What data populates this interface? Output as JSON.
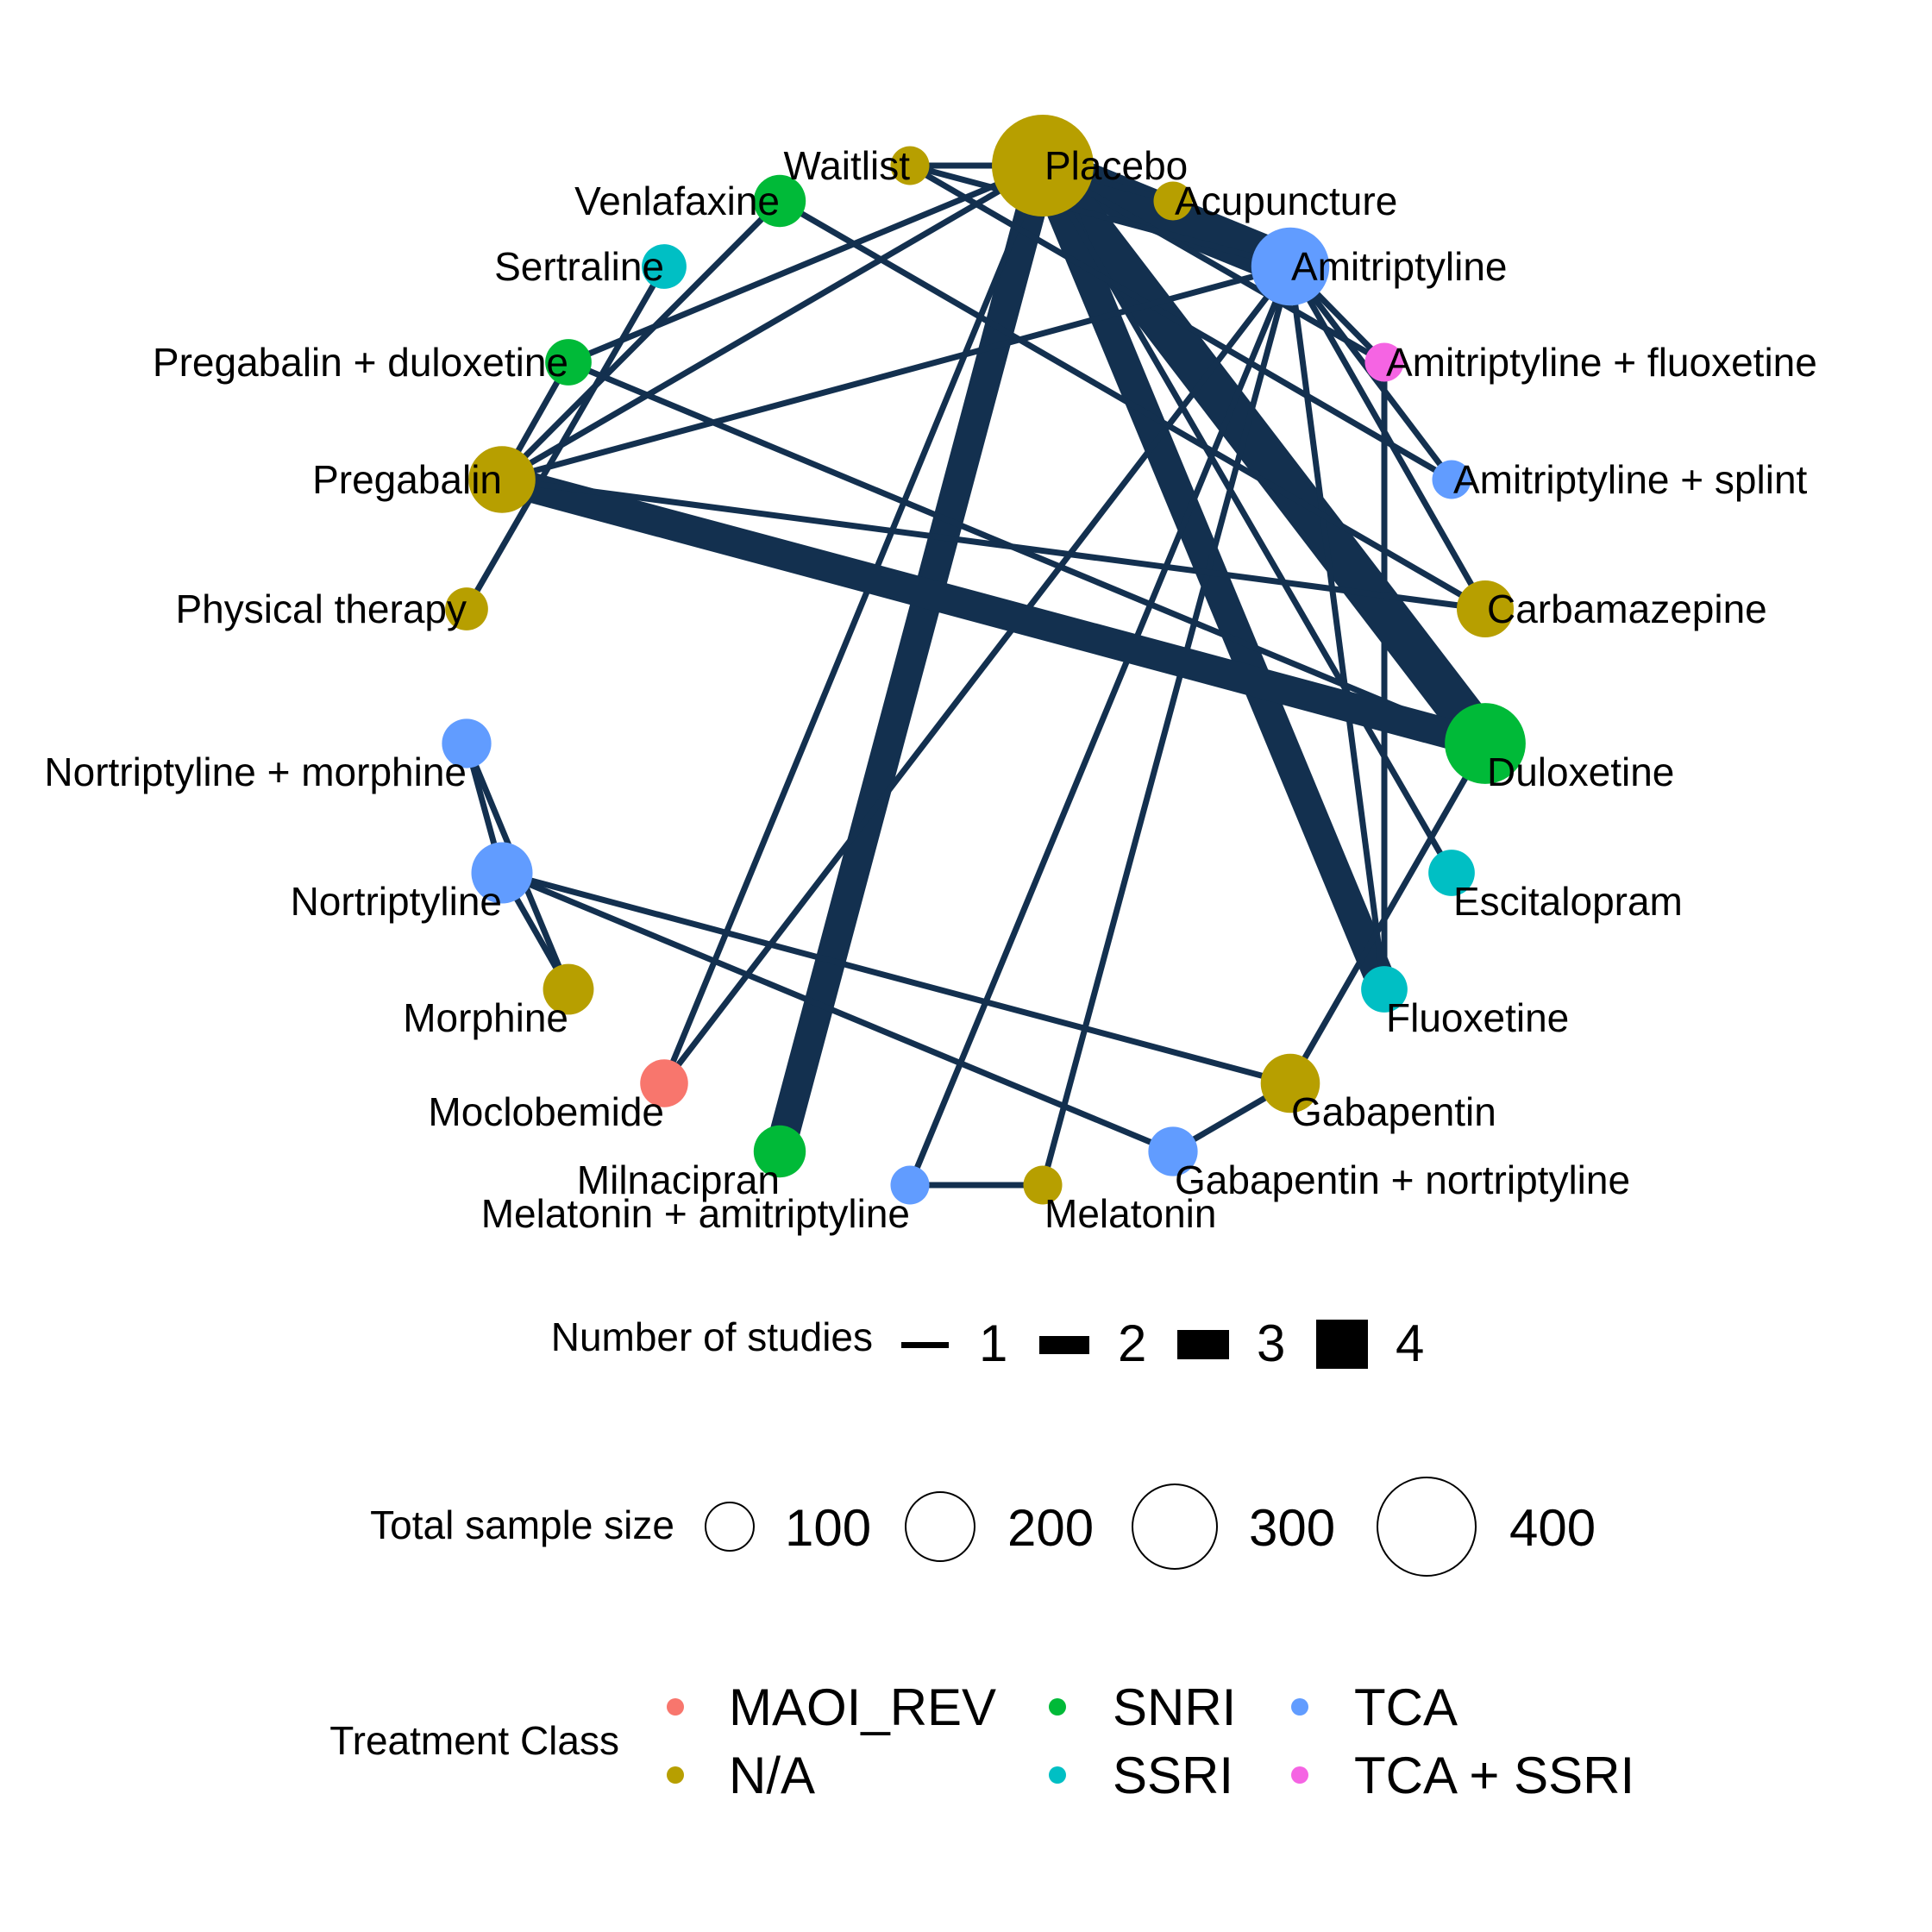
{
  "nodes": [
    {
      "id": "placebo",
      "label": "Placebo",
      "class": "N/A",
      "sample_size": 400
    },
    {
      "id": "waitlist",
      "label": "Waitlist",
      "class": "N/A",
      "sample_size": 20
    },
    {
      "id": "acupuncture",
      "label": "Acupuncture",
      "class": "N/A",
      "sample_size": 20
    },
    {
      "id": "amitriptyline",
      "label": "Amitriptyline",
      "class": "TCA",
      "sample_size": 200
    },
    {
      "id": "ami_fluox",
      "label": "Amitriptyline + fluoxetine",
      "class": "TCA + SSRI",
      "sample_size": 20
    },
    {
      "id": "ami_splint",
      "label": "Amitriptyline + splint",
      "class": "TCA",
      "sample_size": 20
    },
    {
      "id": "carbamazepine",
      "label": "Carbamazepine",
      "class": "N/A",
      "sample_size": 80
    },
    {
      "id": "duloxetine",
      "label": "Duloxetine",
      "class": "SNRI",
      "sample_size": 220
    },
    {
      "id": "escitalopram",
      "label": "Escitalopram",
      "class": "SSRI",
      "sample_size": 40
    },
    {
      "id": "fluoxetine",
      "label": "Fluoxetine",
      "class": "SSRI",
      "sample_size": 40
    },
    {
      "id": "gabapentin",
      "label": "Gabapentin",
      "class": "N/A",
      "sample_size": 90
    },
    {
      "id": "gaba_nortrip",
      "label": "Gabapentin + nortriptyline",
      "class": "TCA",
      "sample_size": 50
    },
    {
      "id": "melatonin",
      "label": "Melatonin",
      "class": "N/A",
      "sample_size": 20
    },
    {
      "id": "mel_ami",
      "label": "Melatonin + amitriptyline",
      "class": "TCA",
      "sample_size": 20
    },
    {
      "id": "milnacipran",
      "label": "Milnacipran",
      "class": "SNRI",
      "sample_size": 60
    },
    {
      "id": "moclobemide",
      "label": "Moclobemide",
      "class": "MAOI_REV",
      "sample_size": 45
    },
    {
      "id": "morphine",
      "label": "Morphine",
      "class": "N/A",
      "sample_size": 55
    },
    {
      "id": "nortriptyline",
      "label": "Nortriptyline",
      "class": "TCA",
      "sample_size": 100
    },
    {
      "id": "nortrip_morph",
      "label": "Nortriptyline + morphine",
      "class": "TCA",
      "sample_size": 50
    },
    {
      "id": "physical_therapy",
      "label": "Physical therapy",
      "class": "N/A",
      "sample_size": 30
    },
    {
      "id": "pregabalin",
      "label": "Pregabalin",
      "class": "N/A",
      "sample_size": 130
    },
    {
      "id": "preg_dulox",
      "label": "Pregabalin + duloxetine",
      "class": "SNRI",
      "sample_size": 40
    },
    {
      "id": "sertraline",
      "label": "Sertraline",
      "class": "SSRI",
      "sample_size": 35
    },
    {
      "id": "venlafaxine",
      "label": "Venlafaxine",
      "class": "SNRI",
      "sample_size": 60
    }
  ],
  "edges": [
    {
      "from": "placebo",
      "to": "amitriptyline",
      "studies": 4
    },
    {
      "from": "placebo",
      "to": "duloxetine",
      "studies": 4
    },
    {
      "from": "placebo",
      "to": "fluoxetine",
      "studies": 3
    },
    {
      "from": "placebo",
      "to": "milnacipran",
      "studies": 3
    },
    {
      "from": "placebo",
      "to": "acupuncture",
      "studies": 1
    },
    {
      "from": "placebo",
      "to": "waitlist",
      "studies": 1
    },
    {
      "from": "placebo",
      "to": "pregabalin",
      "studies": 1
    },
    {
      "from": "placebo",
      "to": "preg_dulox",
      "studies": 1
    },
    {
      "from": "placebo",
      "to": "moclobemide",
      "studies": 1
    },
    {
      "from": "placebo",
      "to": "escitalopram",
      "studies": 1
    },
    {
      "from": "placebo",
      "to": "ami_fluox",
      "studies": 1
    },
    {
      "from": "waitlist",
      "to": "amitriptyline",
      "studies": 1
    },
    {
      "from": "waitlist",
      "to": "ami_splint",
      "studies": 1
    },
    {
      "from": "amitriptyline",
      "to": "ami_fluox",
      "studies": 1
    },
    {
      "from": "amitriptyline",
      "to": "ami_splint",
      "studies": 1
    },
    {
      "from": "amitriptyline",
      "to": "carbamazepine",
      "studies": 1
    },
    {
      "from": "amitriptyline",
      "to": "fluoxetine",
      "studies": 1
    },
    {
      "from": "amitriptyline",
      "to": "pregabalin",
      "studies": 1
    },
    {
      "from": "amitriptyline",
      "to": "moclobemide",
      "studies": 1
    },
    {
      "from": "amitriptyline",
      "to": "mel_ami",
      "studies": 1
    },
    {
      "from": "amitriptyline",
      "to": "melatonin",
      "studies": 1
    },
    {
      "from": "ami_fluox",
      "to": "fluoxetine",
      "studies": 1
    },
    {
      "from": "venlafaxine",
      "to": "pregabalin",
      "studies": 1
    },
    {
      "from": "venlafaxine",
      "to": "carbamazepine",
      "studies": 1
    },
    {
      "from": "sertraline",
      "to": "physical_therapy",
      "studies": 1
    },
    {
      "from": "preg_dulox",
      "to": "pregabalin",
      "studies": 1
    },
    {
      "from": "preg_dulox",
      "to": "duloxetine",
      "studies": 1
    },
    {
      "from": "pregabalin",
      "to": "duloxetine",
      "studies": 3
    },
    {
      "from": "pregabalin",
      "to": "carbamazepine",
      "studies": 1
    },
    {
      "from": "duloxetine",
      "to": "gabapentin",
      "studies": 1
    },
    {
      "from": "nortrip_morph",
      "to": "nortriptyline",
      "studies": 1
    },
    {
      "from": "nortrip_morph",
      "to": "morphine",
      "studies": 1
    },
    {
      "from": "nortriptyline",
      "to": "morphine",
      "studies": 1
    },
    {
      "from": "nortriptyline",
      "to": "gabapentin",
      "studies": 1
    },
    {
      "from": "nortriptyline",
      "to": "gaba_nortrip",
      "studies": 1
    },
    {
      "from": "gabapentin",
      "to": "gaba_nortrip",
      "studies": 1
    },
    {
      "from": "mel_ami",
      "to": "melatonin",
      "studies": 1
    }
  ],
  "class_colors": {
    "MAOI_REV": "#F8766D",
    "N/A": "#B79F00",
    "SNRI": "#00BA38",
    "SSRI": "#00BFC4",
    "TCA": "#619CFF",
    "TCA + SSRI": "#F564E3"
  },
  "edge_color": "#13304F",
  "legend": {
    "studies_title": "Number of studies",
    "studies_values": [
      "1",
      "2",
      "3",
      "4"
    ],
    "size_title": "Total sample size",
    "size_values": [
      "100",
      "200",
      "300",
      "400"
    ],
    "class_title": "Treatment Class",
    "classes": [
      "MAOI_REV",
      "N/A",
      "SNRI",
      "SSRI",
      "TCA",
      "TCA + SSRI"
    ]
  }
}
